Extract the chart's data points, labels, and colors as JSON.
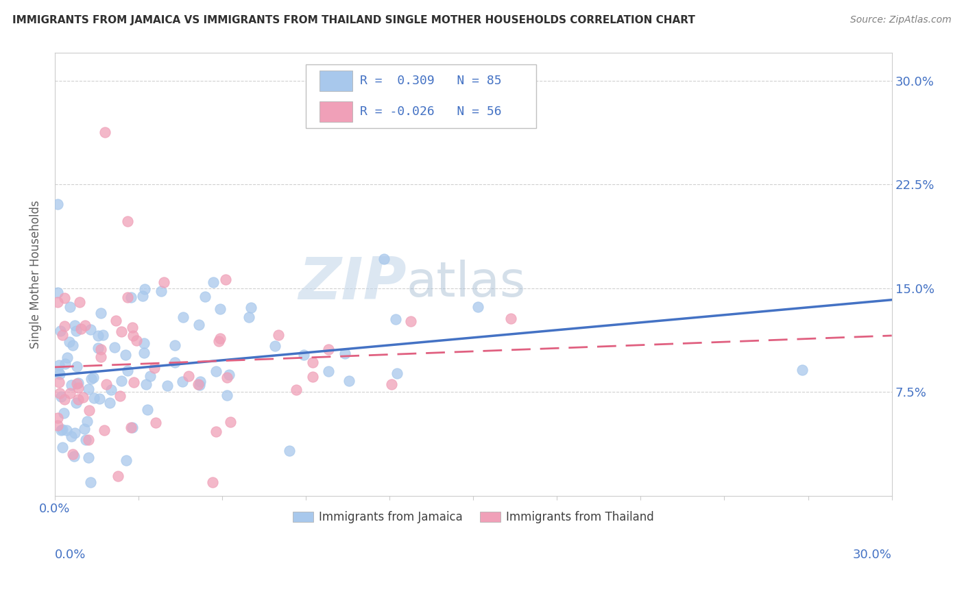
{
  "title": "IMMIGRANTS FROM JAMAICA VS IMMIGRANTS FROM THAILAND SINGLE MOTHER HOUSEHOLDS CORRELATION CHART",
  "source": "Source: ZipAtlas.com",
  "ylabel": "Single Mother Households",
  "ytick_values": [
    0.075,
    0.15,
    0.225,
    0.3
  ],
  "xlim": [
    0.0,
    0.3
  ],
  "ylim": [
    0.0,
    0.32
  ],
  "legend_jamaica": "Immigrants from Jamaica",
  "legend_thailand": "Immigrants from Thailand",
  "r_jamaica": 0.309,
  "n_jamaica": 85,
  "r_thailand": -0.026,
  "n_thailand": 56,
  "color_jamaica": "#A8C8EC",
  "color_thailand": "#F0A0B8",
  "color_jamaica_line": "#4472C4",
  "color_thailand_line": "#E06080",
  "color_title": "#303030",
  "color_source": "#808080",
  "color_axis_labels": "#4472C4",
  "color_ylabel": "#606060",
  "background_color": "#FFFFFF",
  "watermark_zip": "ZIP",
  "watermark_atlas": "atlas",
  "seed_jamaica": 42,
  "seed_thailand": 99
}
